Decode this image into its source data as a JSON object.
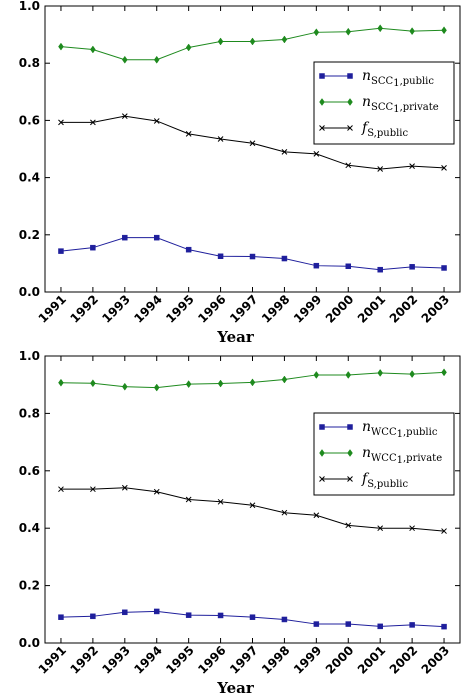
{
  "chart_data": [
    {
      "type": "line",
      "xlabel": "Year",
      "ylabel": "",
      "ylim": [
        0,
        1.0
      ],
      "yticks": [
        "0.0",
        "0.2",
        "0.4",
        "0.6",
        "0.8",
        "1.0"
      ],
      "grid": false,
      "legend_position": "right",
      "categories": [
        "1991",
        "1992",
        "1993",
        "1994",
        "1995",
        "1996",
        "1997",
        "1998",
        "1999",
        "2000",
        "2001",
        "2002",
        "2003"
      ],
      "series": [
        {
          "legend": {
            "main": "n",
            "sub": "SCC",
            "subsub": "1",
            "tail": ",public"
          },
          "color": "#1f1f9c",
          "marker": "square",
          "values": [
            0.143,
            0.155,
            0.19,
            0.19,
            0.148,
            0.125,
            0.124,
            0.117,
            0.092,
            0.09,
            0.078,
            0.088,
            0.084
          ]
        },
        {
          "legend": {
            "main": "n",
            "sub": "SCC",
            "subsub": "1",
            "tail": ",private"
          },
          "color": "#1e8a1e",
          "marker": "diamond",
          "values": [
            0.858,
            0.848,
            0.812,
            0.812,
            0.855,
            0.876,
            0.876,
            0.883,
            0.908,
            0.91,
            0.922,
            0.912,
            0.915
          ]
        },
        {
          "legend": {
            "main": "f",
            "sub": "S,public",
            "subsub": "",
            "tail": ""
          },
          "color": "#000000",
          "marker": "x",
          "values": [
            0.593,
            0.593,
            0.615,
            0.598,
            0.553,
            0.535,
            0.52,
            0.49,
            0.483,
            0.443,
            0.43,
            0.44,
            0.434
          ]
        }
      ]
    },
    {
      "type": "line",
      "xlabel": "Year",
      "ylabel": "",
      "ylim": [
        0,
        1.0
      ],
      "yticks": [
        "0.0",
        "0.2",
        "0.4",
        "0.6",
        "0.8",
        "1.0"
      ],
      "grid": false,
      "legend_position": "right",
      "categories": [
        "1991",
        "1992",
        "1993",
        "1994",
        "1995",
        "1996",
        "1997",
        "1998",
        "1999",
        "2000",
        "2001",
        "2002",
        "2003"
      ],
      "series": [
        {
          "legend": {
            "main": "n",
            "sub": "WCC",
            "subsub": "1",
            "tail": ",public"
          },
          "color": "#1f1f9c",
          "marker": "square",
          "values": [
            0.09,
            0.093,
            0.107,
            0.11,
            0.097,
            0.096,
            0.09,
            0.082,
            0.066,
            0.066,
            0.058,
            0.063,
            0.057
          ]
        },
        {
          "legend": {
            "main": "n",
            "sub": "WCC",
            "subsub": "1",
            "tail": ",private"
          },
          "color": "#1e8a1e",
          "marker": "diamond",
          "values": [
            0.907,
            0.905,
            0.893,
            0.89,
            0.902,
            0.904,
            0.908,
            0.918,
            0.934,
            0.934,
            0.941,
            0.937,
            0.943
          ]
        },
        {
          "legend": {
            "main": "f",
            "sub": "S,public",
            "subsub": "",
            "tail": ""
          },
          "color": "#000000",
          "marker": "x",
          "values": [
            0.536,
            0.536,
            0.541,
            0.527,
            0.5,
            0.492,
            0.48,
            0.454,
            0.445,
            0.41,
            0.4,
            0.4,
            0.39
          ]
        }
      ]
    }
  ]
}
